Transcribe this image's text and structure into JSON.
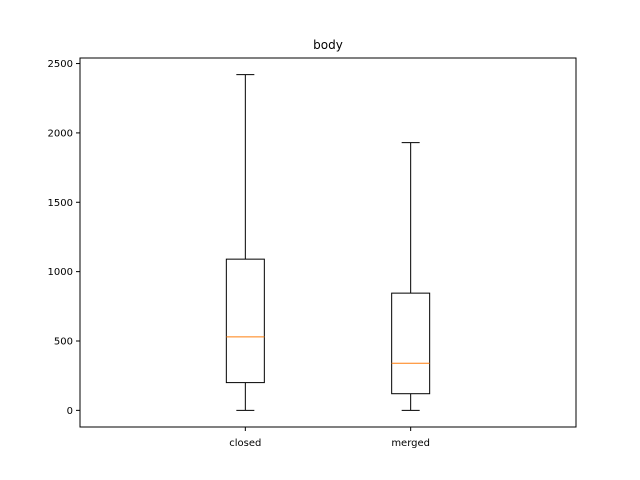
{
  "chart_data": {
    "type": "box",
    "title": "body",
    "xlabel": "",
    "ylabel": "",
    "categories": [
      "closed",
      "merged"
    ],
    "boxes": [
      {
        "category": "closed",
        "whisker_low": 0,
        "q1": 200,
        "median": 530,
        "q3": 1090,
        "whisker_high": 2420
      },
      {
        "category": "merged",
        "whisker_low": 0,
        "q1": 120,
        "median": 340,
        "q3": 845,
        "whisker_high": 1930
      }
    ],
    "ylim": [
      -120,
      2540
    ],
    "yticks": [
      0,
      500,
      1000,
      1500,
      2000,
      2500
    ],
    "grid": false,
    "colors": {
      "box": "#000000",
      "median": "#ff7f0e",
      "axes": "#000000"
    }
  }
}
